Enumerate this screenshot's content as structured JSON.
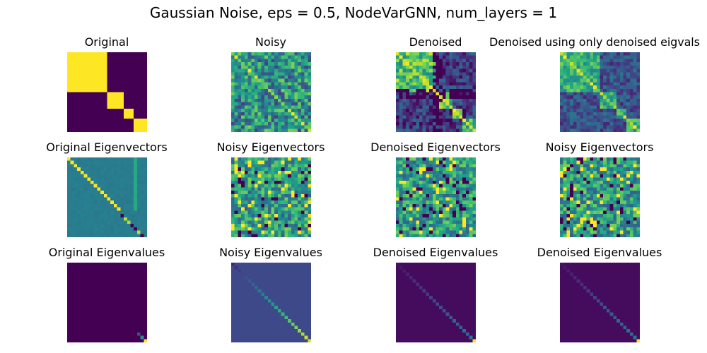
{
  "figure": {
    "suptitle": "Gaussian Noise, eps = 0.5, NodeVarGNN, num_layers = 1"
  },
  "chart_data": [
    {
      "type": "heatmap",
      "title": "Original",
      "colormap": "viridis",
      "size": 24,
      "pattern": "block_adjacency",
      "blocks": [
        12,
        5,
        3,
        1
      ]
    },
    {
      "type": "heatmap",
      "title": "Noisy",
      "colormap": "viridis",
      "size": 24,
      "pattern": "noisy"
    },
    {
      "type": "heatmap",
      "title": "Denoised",
      "colormap": "viridis",
      "size": 24,
      "pattern": "denoised"
    },
    {
      "type": "heatmap",
      "title": "Denoised using only denoised eigvals",
      "colormap": "viridis",
      "size": 24,
      "pattern": "denoised_eigvals"
    },
    {
      "type": "heatmap",
      "title": "Original Eigenvectors",
      "colormap": "viridis",
      "size": 24,
      "pattern": "orig_eigvecs"
    },
    {
      "type": "heatmap",
      "title": "Noisy Eigenvectors",
      "colormap": "viridis",
      "size": 24,
      "pattern": "random_eigvecs"
    },
    {
      "type": "heatmap",
      "title": "Denoised Eigenvectors",
      "colormap": "viridis",
      "size": 24,
      "pattern": "random_eigvecs"
    },
    {
      "type": "heatmap",
      "title": "Noisy Eigenvectors",
      "colormap": "viridis",
      "size": 24,
      "pattern": "random_eigvecs"
    },
    {
      "type": "heatmap",
      "title": "Original Eigenvalues",
      "colormap": "viridis",
      "size": 24,
      "pattern": "diagonal",
      "background": 0.0,
      "diag_last": [
        0.25,
        0.5,
        1.0
      ]
    },
    {
      "type": "heatmap",
      "title": "Noisy Eigenvalues",
      "colormap": "viridis",
      "size": 24,
      "pattern": "diagonal",
      "background": 0.22,
      "diag_ramp": [
        0.1,
        0.95
      ]
    },
    {
      "type": "heatmap",
      "title": "Denoised Eigenvalues",
      "colormap": "viridis",
      "size": 24,
      "pattern": "diagonal",
      "background": 0.03,
      "diag_ramp": [
        0.05,
        0.4
      ],
      "diag_last_value": 1.0
    },
    {
      "type": "heatmap",
      "title": "Denoised Eigenvalues",
      "colormap": "viridis",
      "size": 24,
      "pattern": "diagonal",
      "background": 0.03,
      "diag_ramp": [
        0.05,
        0.4
      ],
      "diag_last_value": 1.0
    }
  ]
}
